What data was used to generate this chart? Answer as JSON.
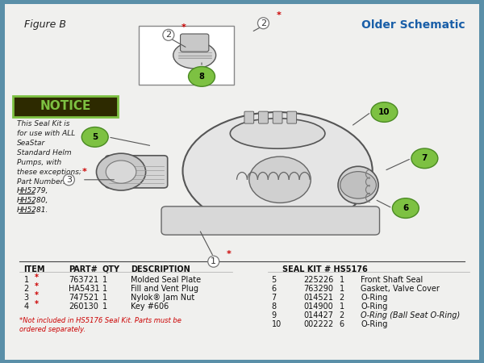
{
  "title_left": "Figure B",
  "title_right": "Older Schematic",
  "notice_label": "NOTICE",
  "notice_text": "This Seal Kit is\nfor use with ALL\nSeaStar\nStandard Helm\nPumps, with\nthese exceptions;\nPart Numbers\nHH5279,\nHH5280,\nHH5281.",
  "bg_ocean_color": "#5a8fa8",
  "bg_panel_color": "#f0f0ee",
  "notice_bg": "#2d2a00",
  "notice_fg": "#7dc142",
  "title_right_color": "#1a5fa8",
  "table_header_left": [
    "ITEM",
    "PART#",
    "QTY",
    "DESCRIPTION"
  ],
  "table_header_right": "SEAL KIT # HS5176",
  "table_rows_left": [
    [
      "1*",
      "763721",
      "1",
      "Molded Seal Plate"
    ],
    [
      "2*",
      "HA5431",
      "1",
      "Fill and Vent Plug"
    ],
    [
      "3*",
      "747521",
      "1",
      "Nylok® Jam Nut"
    ],
    [
      "4*",
      "260130",
      "1",
      "Key #606"
    ]
  ],
  "table_rows_right": [
    [
      "5",
      "225226",
      "1",
      "Front Shaft Seal"
    ],
    [
      "6",
      "763290",
      "1",
      "Gasket, Valve Cover"
    ],
    [
      "7",
      "014521",
      "2",
      "O-Ring"
    ],
    [
      "8",
      "014900",
      "1",
      "O-Ring"
    ],
    [
      "9",
      "014427",
      "2",
      "O-Ring (Ball Seat O-Ring)"
    ],
    [
      "10",
      "002222",
      "6",
      "O-Ring"
    ]
  ],
  "footnote": "*Not included in HS5176 Seal Kit. Parts must be\nordered separately.",
  "label_circle_color": "#7dc142",
  "label_star_color": "#cc0000",
  "underline_parts": [
    "HH5279,",
    "HH5280,",
    "HH5281."
  ]
}
